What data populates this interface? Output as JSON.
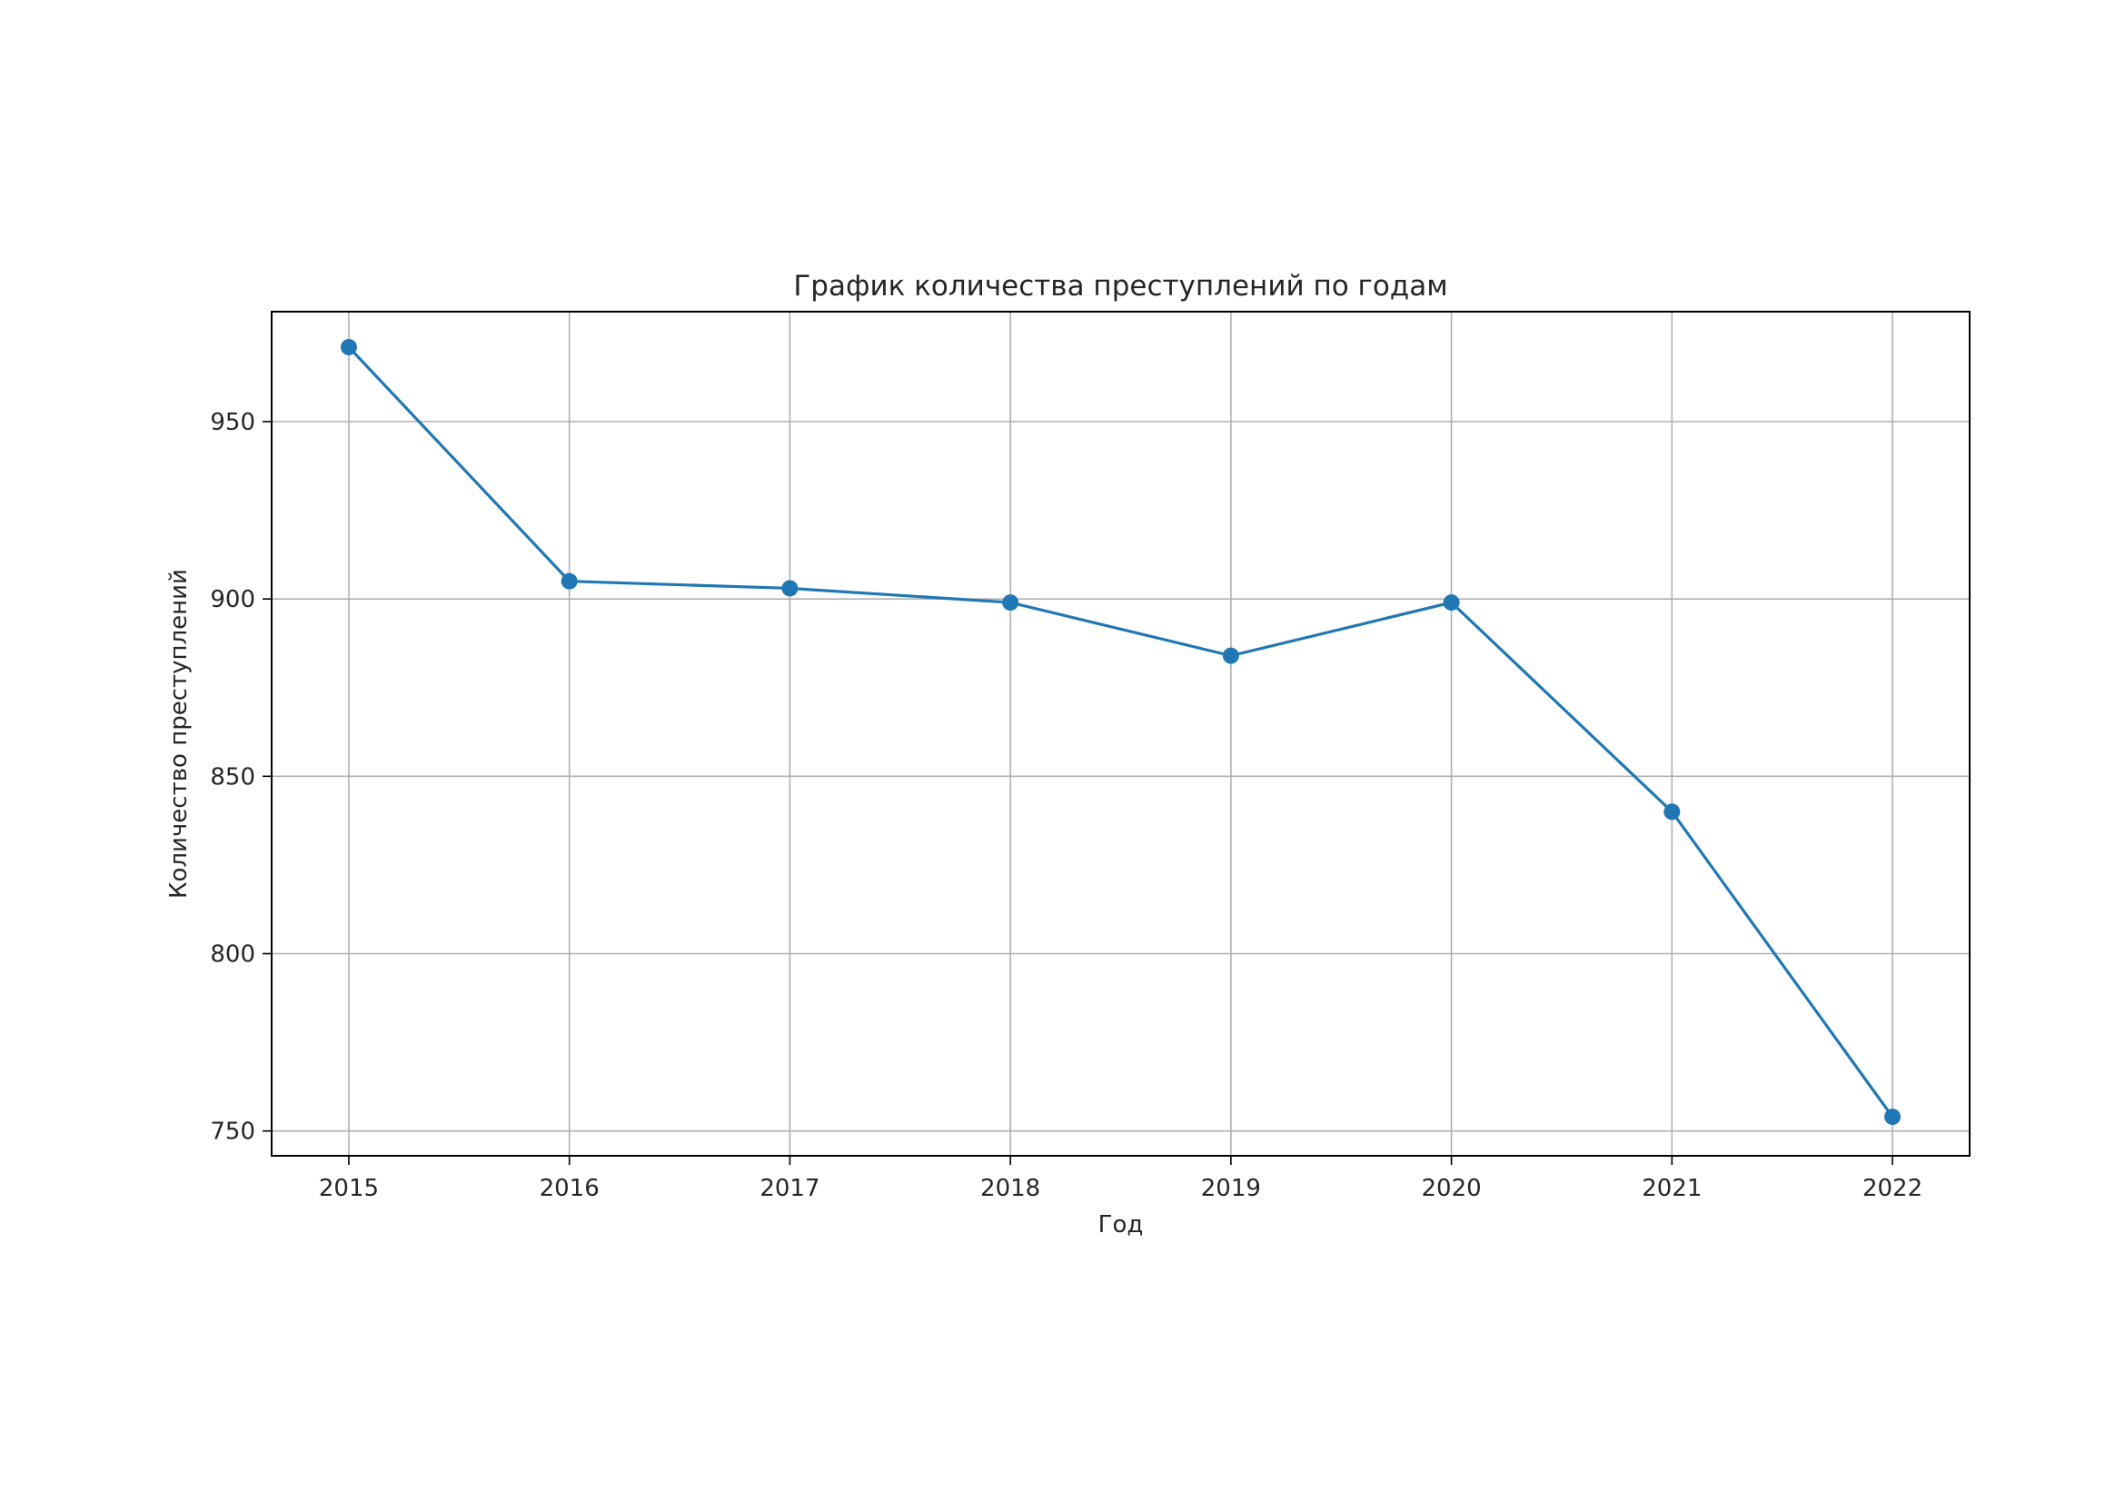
{
  "chart_data": {
    "type": "line",
    "title": "График количества преступлений по годам",
    "xlabel": "Год",
    "ylabel": "Количество преступлений",
    "x": [
      "2015",
      "2016",
      "2017",
      "2018",
      "2019",
      "2020",
      "2021",
      "2022"
    ],
    "series": [
      {
        "values": [
          971,
          905,
          903,
          899,
          884,
          899,
          840,
          754
        ],
        "color": "#1f77b4",
        "marker": "circle"
      }
    ],
    "yticks": [
      750,
      800,
      850,
      900,
      950
    ],
    "ylim": [
      743,
      981
    ],
    "grid": true,
    "legend": false
  }
}
